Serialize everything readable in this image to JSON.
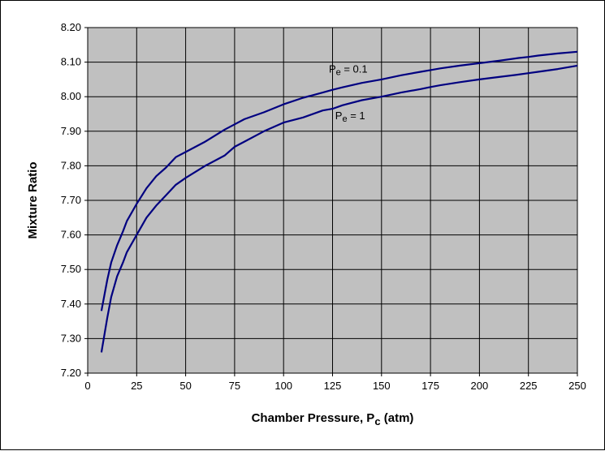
{
  "chart_data": {
    "type": "line",
    "xlabel": "Chamber Pressure, P",
    "xlabel_sub": "c",
    "xlabel_suffix": " (atm)",
    "ylabel": "Mixture Ratio",
    "xlim": [
      0,
      250
    ],
    "ylim": [
      7.2,
      8.2
    ],
    "x_ticks": [
      "0",
      "25",
      "50",
      "75",
      "100",
      "125",
      "150",
      "175",
      "200",
      "225",
      "250"
    ],
    "y_ticks": [
      "7.20",
      "7.30",
      "7.40",
      "7.50",
      "7.60",
      "7.70",
      "7.80",
      "7.90",
      "8.00",
      "8.10",
      "8.20"
    ],
    "grid": true,
    "plot_background": "#c0c0c0",
    "line_color": "#000080",
    "series": [
      {
        "name": "Pe = 0.1",
        "x": [
          7,
          10,
          12,
          15,
          18,
          20,
          25,
          30,
          35,
          40,
          45,
          50,
          60,
          70,
          75,
          80,
          90,
          100,
          110,
          120,
          125,
          130,
          140,
          150,
          160,
          170,
          175,
          180,
          190,
          200,
          210,
          220,
          225,
          230,
          240,
          250
        ],
        "values": [
          7.38,
          7.47,
          7.52,
          7.57,
          7.61,
          7.64,
          7.69,
          7.735,
          7.77,
          7.795,
          7.825,
          7.84,
          7.87,
          7.905,
          7.92,
          7.935,
          7.955,
          7.978,
          7.997,
          8.012,
          8.02,
          8.027,
          8.04,
          8.05,
          8.062,
          8.072,
          8.077,
          8.082,
          8.09,
          8.097,
          8.104,
          8.112,
          8.115,
          8.119,
          8.125,
          8.13
        ]
      },
      {
        "name": "Pe = 1",
        "x": [
          7,
          10,
          12,
          15,
          18,
          20,
          25,
          30,
          35,
          40,
          45,
          50,
          60,
          70,
          75,
          80,
          90,
          100,
          110,
          120,
          125,
          130,
          140,
          150,
          160,
          170,
          175,
          180,
          190,
          200,
          210,
          220,
          225,
          230,
          240,
          250
        ],
        "values": [
          7.26,
          7.36,
          7.42,
          7.48,
          7.52,
          7.55,
          7.6,
          7.65,
          7.685,
          7.715,
          7.745,
          7.765,
          7.8,
          7.83,
          7.855,
          7.87,
          7.9,
          7.925,
          7.94,
          7.96,
          7.965,
          7.975,
          7.99,
          8.0,
          8.012,
          8.022,
          8.028,
          8.033,
          8.042,
          8.05,
          8.057,
          8.064,
          8.068,
          8.072,
          8.08,
          8.09
        ]
      }
    ],
    "annotations": [
      {
        "base": "P",
        "sub": "e",
        "text": " = 0.1",
        "series": 0,
        "x": 133,
        "y": 8.07
      },
      {
        "base": "P",
        "sub": "e",
        "text": " = 1",
        "series": 1,
        "x": 134,
        "y": 7.935
      }
    ]
  }
}
